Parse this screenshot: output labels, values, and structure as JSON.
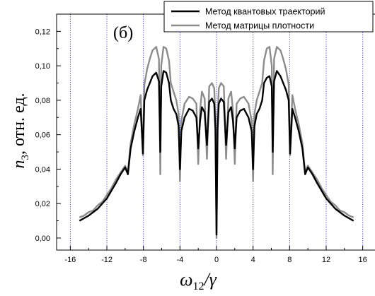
{
  "chart_data": {
    "type": "line",
    "panel_label": "(б)",
    "xlabel": "ω12/γ",
    "xlabel_parts": {
      "main": "ω",
      "sub": "12",
      "rest": "/γ"
    },
    "ylabel": "n3, отн. ед.",
    "ylabel_parts": {
      "main": "n",
      "sub": "3",
      "rest": ", отн. ед."
    },
    "xlim": [
      -17.5,
      17.5
    ],
    "ylim": [
      -0.007,
      0.13
    ],
    "xticks": [
      -16,
      -12,
      -8,
      -4,
      0,
      4,
      8,
      12,
      16
    ],
    "xtick_labels": [
      "-16",
      "-12",
      "-8",
      "-4",
      "0",
      "4",
      "8",
      "12",
      "16"
    ],
    "yticks": [
      0.0,
      0.02,
      0.04,
      0.06,
      0.08,
      0.1,
      0.12
    ],
    "ytick_labels": [
      "0,00",
      "0,02",
      "0,04",
      "0,06",
      "0,08",
      "0,10",
      "0,12"
    ],
    "vertical_guides": [
      -16,
      -12,
      -8,
      -4,
      0,
      4,
      8,
      12,
      16
    ],
    "legend_position": "top-right",
    "series": [
      {
        "name": "Метод квантовых траекторий",
        "color": "#000000",
        "x": [
          -15,
          -14,
          -13,
          -12,
          -11,
          -10.5,
          -10,
          -9.7,
          -9.4,
          -9,
          -8.6,
          -8.3,
          -8.05,
          -7.9,
          -7.6,
          -7.3,
          -7,
          -6.6,
          -6.3,
          -6.15,
          -6.05,
          -5.8,
          -5.5,
          -5.2,
          -5,
          -4.7,
          -4.4,
          -4.15,
          -4,
          -3.85,
          -3.5,
          -3,
          -2.6,
          -2.2,
          -2,
          -1.8,
          -1.6,
          -1.3,
          -1.05,
          -0.8,
          -0.5,
          -0.25,
          -0.12,
          0,
          0.12,
          0.25,
          0.5,
          0.8,
          1.05,
          1.3,
          1.6,
          1.8,
          2,
          2.2,
          2.6,
          3,
          3.5,
          3.85,
          4,
          4.15,
          4.4,
          4.7,
          5,
          5.2,
          5.5,
          5.8,
          6.05,
          6.15,
          6.3,
          6.6,
          7,
          7.3,
          7.6,
          7.9,
          8.05,
          8.3,
          8.6,
          9,
          9.4,
          9.7,
          10,
          10.5,
          11,
          12,
          13,
          14,
          15
        ],
        "values": [
          0.01,
          0.013,
          0.017,
          0.023,
          0.032,
          0.037,
          0.041,
          0.037,
          0.052,
          0.062,
          0.07,
          0.075,
          0.049,
          0.08,
          0.086,
          0.09,
          0.094,
          0.096,
          0.091,
          0.05,
          0.088,
          0.097,
          0.096,
          0.09,
          0.08,
          0.075,
          0.072,
          0.065,
          0.04,
          0.062,
          0.07,
          0.075,
          0.074,
          0.07,
          0.052,
          0.068,
          0.076,
          0.073,
          0.054,
          0.079,
          0.081,
          0.078,
          0.063,
          0.002,
          0.063,
          0.078,
          0.081,
          0.079,
          0.054,
          0.073,
          0.076,
          0.068,
          0.052,
          0.07,
          0.074,
          0.075,
          0.07,
          0.062,
          0.04,
          0.065,
          0.072,
          0.075,
          0.08,
          0.09,
          0.093,
          0.094,
          0.088,
          0.05,
          0.091,
          0.097,
          0.094,
          0.09,
          0.086,
          0.08,
          0.049,
          0.075,
          0.07,
          0.062,
          0.052,
          0.037,
          0.041,
          0.037,
          0.032,
          0.023,
          0.017,
          0.013,
          0.01
        ]
      },
      {
        "name": "Метод матрицы плотности",
        "color": "#8c8c8c",
        "x": [
          -15,
          -14.5,
          -14,
          -13.5,
          -13,
          -12.5,
          -12,
          -11.5,
          -11,
          -10.5,
          -10,
          -9.7,
          -9.4,
          -9,
          -8.6,
          -8.3,
          -8.05,
          -7.9,
          -7.6,
          -7.3,
          -7,
          -6.6,
          -6.3,
          -6.15,
          -6.05,
          -5.8,
          -5.5,
          -5.2,
          -5,
          -4.7,
          -4.4,
          -4.15,
          -4,
          -3.85,
          -3.5,
          -3,
          -2.6,
          -2.2,
          -2,
          -1.8,
          -1.6,
          -1.3,
          -1.05,
          -0.8,
          -0.5,
          -0.25,
          -0.12,
          0,
          0.12,
          0.25,
          0.5,
          0.8,
          1.05,
          1.3,
          1.6,
          1.8,
          2,
          2.2,
          2.6,
          3,
          3.5,
          3.85,
          4,
          4.15,
          4.4,
          4.7,
          5,
          5.2,
          5.5,
          5.8,
          6.05,
          6.15,
          6.3,
          6.6,
          7,
          7.3,
          7.6,
          7.9,
          8.05,
          8.3,
          8.6,
          9,
          9.4,
          9.7,
          10,
          10.5,
          11,
          11.5,
          12,
          12.5,
          13,
          13.5,
          14,
          14.5,
          15
        ],
        "values": [
          0.012,
          0.013,
          0.015,
          0.016,
          0.019,
          0.021,
          0.025,
          0.029,
          0.034,
          0.038,
          0.042,
          0.038,
          0.055,
          0.066,
          0.075,
          0.083,
          0.048,
          0.089,
          0.098,
          0.104,
          0.109,
          0.111,
          0.104,
          0.037,
          0.1,
          0.111,
          0.11,
          0.103,
          0.09,
          0.085,
          0.08,
          0.072,
          0.033,
          0.068,
          0.078,
          0.082,
          0.081,
          0.078,
          0.043,
          0.074,
          0.085,
          0.081,
          0.046,
          0.088,
          0.09,
          0.087,
          0.07,
          0.0,
          0.07,
          0.087,
          0.09,
          0.088,
          0.046,
          0.081,
          0.085,
          0.074,
          0.043,
          0.078,
          0.081,
          0.082,
          0.078,
          0.068,
          0.033,
          0.072,
          0.08,
          0.085,
          0.09,
          0.103,
          0.11,
          0.111,
          0.1,
          0.037,
          0.104,
          0.111,
          0.109,
          0.104,
          0.098,
          0.089,
          0.048,
          0.083,
          0.075,
          0.066,
          0.055,
          0.038,
          0.042,
          0.038,
          0.034,
          0.029,
          0.025,
          0.021,
          0.019,
          0.016,
          0.015,
          0.013,
          0.012
        ]
      }
    ]
  }
}
